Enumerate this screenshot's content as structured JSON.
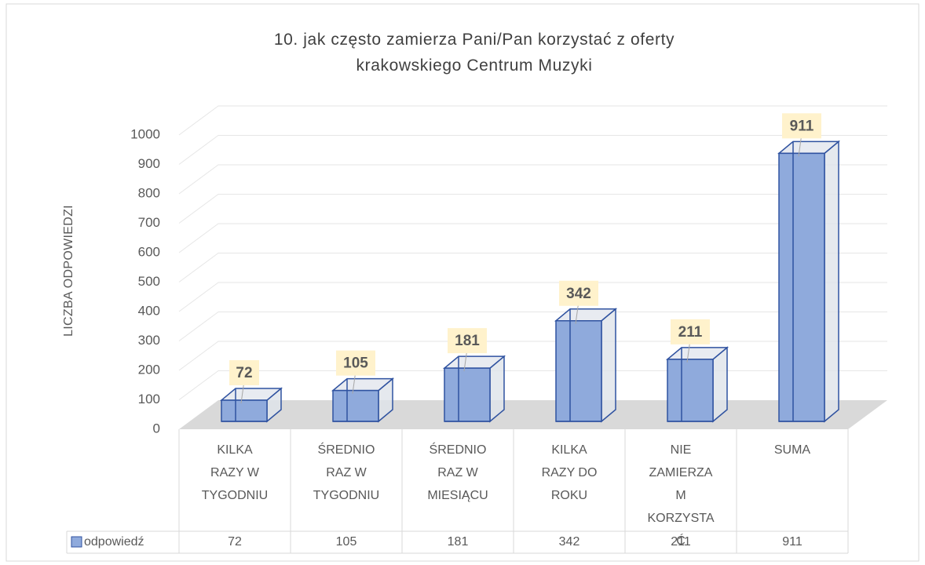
{
  "chart_data": {
    "type": "bar",
    "title": "10. jak często zamierza Pani/Pan korzystać z oferty krakowskiego Centrum Muzyki",
    "y_label": "LICZBA ODPOWIEDZI",
    "categories": [
      "KILKA RAZY W TYGODNIU",
      "ŚREDNIO RAZ W TYGODNIU",
      "ŚREDNIO RAZ W MIESIĄCU",
      "KILKA RAZY DO ROKU",
      "NIE ZAMIERZAM KORZYSTAĆ",
      "SUMA"
    ],
    "series": [
      {
        "name": "odpowiedź",
        "color": "#8faadc",
        "values": [
          72,
          105,
          181,
          342,
          211,
          911
        ]
      }
    ],
    "ylim": [
      0,
      1000
    ],
    "yticks": [
      0,
      100,
      200,
      300,
      400,
      500,
      600,
      700,
      800,
      900,
      1000
    ],
    "grid": true
  }
}
